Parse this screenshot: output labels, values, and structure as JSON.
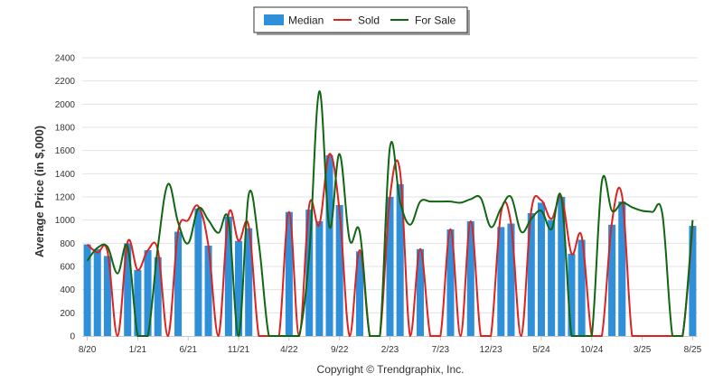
{
  "chart_data": {
    "type": "bar",
    "title": "",
    "ylabel": "Average Price (in $,000)",
    "ylim": [
      0,
      2400
    ],
    "yticks": [
      0,
      200,
      400,
      600,
      800,
      1000,
      1200,
      1400,
      1600,
      1800,
      2000,
      2200,
      2400
    ],
    "grid": true,
    "legend_position": "top-center",
    "x_tick_labels": [
      "8/20",
      "1/21",
      "6/21",
      "11/21",
      "4/22",
      "9/22",
      "2/23",
      "7/23",
      "12/23",
      "5/24",
      "10/24",
      "3/25",
      "8/25"
    ],
    "x_tick_label_every": 5,
    "months": [
      "8/20",
      "9/20",
      "10/20",
      "11/20",
      "12/20",
      "1/21",
      "2/21",
      "3/21",
      "4/21",
      "5/21",
      "6/21",
      "7/21",
      "8/21",
      "9/21",
      "10/21",
      "11/21",
      "12/21",
      "1/22",
      "2/22",
      "3/22",
      "4/22",
      "5/22",
      "6/22",
      "7/22",
      "8/22",
      "9/22",
      "10/22",
      "11/22",
      "12/22",
      "1/23",
      "2/23",
      "3/23",
      "4/23",
      "5/23",
      "6/23",
      "7/23",
      "8/23",
      "9/23",
      "10/23",
      "11/23",
      "12/23",
      "1/24",
      "2/24",
      "3/24",
      "4/24",
      "5/24",
      "6/24",
      "7/24",
      "8/24",
      "9/24",
      "10/24",
      "11/24",
      "12/24",
      "1/25",
      "2/25",
      "3/25",
      "4/25",
      "5/25",
      "6/25",
      "7/25",
      "8/25"
    ],
    "series": [
      {
        "name": "Median",
        "type": "bar",
        "color": "#2f8fd8",
        "values": [
          790,
          750,
          690,
          0,
          800,
          570,
          740,
          680,
          0,
          900,
          0,
          1100,
          780,
          0,
          1030,
          820,
          930,
          0,
          0,
          0,
          1070,
          0,
          1090,
          990,
          1560,
          1130,
          0,
          730,
          0,
          0,
          1200,
          1310,
          0,
          750,
          0,
          0,
          920,
          0,
          990,
          0,
          0,
          940,
          970,
          0,
          1060,
          1150,
          1000,
          1200,
          710,
          830,
          0,
          0,
          960,
          1160,
          0,
          0,
          0,
          0,
          0,
          0,
          950
        ]
      },
      {
        "name": "Sold",
        "type": "line",
        "color": "#dd2222",
        "values": [
          790,
          720,
          730,
          0,
          810,
          570,
          740,
          740,
          0,
          900,
          1000,
          1120,
          780,
          0,
          1050,
          820,
          950,
          0,
          0,
          0,
          1070,
          0,
          1130,
          960,
          1570,
          1080,
          0,
          740,
          0,
          0,
          1200,
          1420,
          0,
          750,
          0,
          0,
          920,
          0,
          990,
          0,
          0,
          1060,
          970,
          0,
          1080,
          1170,
          1010,
          1200,
          710,
          860,
          0,
          0,
          980,
          1210,
          0,
          0,
          0,
          0,
          0,
          0,
          950
        ]
      },
      {
        "name": "For Sale",
        "type": "line",
        "color": "#116611",
        "values": [
          650,
          760,
          770,
          540,
          770,
          0,
          0,
          770,
          1310,
          980,
          800,
          1100,
          1000,
          890,
          1000,
          0,
          1220,
          800,
          0,
          0,
          0,
          0,
          700,
          2110,
          940,
          1570,
          830,
          900,
          0,
          0,
          1630,
          1160,
          960,
          1160,
          1160,
          1160,
          1160,
          1150,
          1180,
          1190,
          940,
          1100,
          1200,
          900,
          1010,
          1080,
          920,
          1190,
          0,
          0,
          0,
          1330,
          1080,
          1150,
          1110,
          1080,
          1070,
          1050,
          0,
          0,
          1000
        ]
      }
    ]
  },
  "legend": {
    "items": [
      {
        "label": "Median",
        "color": "#2f8fd8",
        "kind": "box"
      },
      {
        "label": "Sold",
        "color": "#dd2222",
        "kind": "line"
      },
      {
        "label": "For Sale",
        "color": "#116611",
        "kind": "line"
      }
    ]
  },
  "footer": {
    "copyright": "Copyright © Trendgraphix, Inc."
  }
}
